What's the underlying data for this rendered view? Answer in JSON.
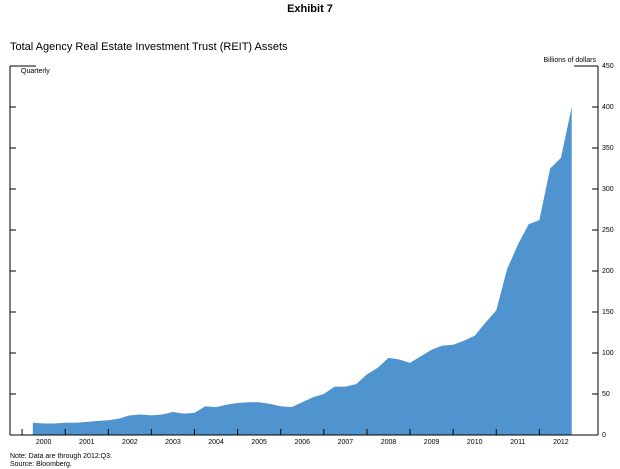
{
  "chart_data": {
    "type": "area",
    "header": "Exhibit 7",
    "title": "Total Agency Real Estate Investment Trust (REIT) Assets",
    "x_annotation": "Quarterly",
    "y_axis_label": "Billions of dollars",
    "note": "Note: Data are through 2012:Q3.",
    "source": "Source: Bloomberg.",
    "color": "#4f93cf",
    "x": [
      2000.25,
      2000.5,
      2000.75,
      2001,
      2001.25,
      2001.5,
      2001.75,
      2002,
      2002.25,
      2002.5,
      2002.75,
      2003,
      2003.25,
      2003.5,
      2003.75,
      2004,
      2004.25,
      2004.5,
      2004.75,
      2005,
      2005.25,
      2005.5,
      2005.75,
      2006,
      2006.25,
      2006.5,
      2006.75,
      2007,
      2007.25,
      2007.5,
      2007.75,
      2008,
      2008.25,
      2008.5,
      2008.75,
      2009,
      2009.25,
      2009.5,
      2009.75,
      2010,
      2010.25,
      2010.5,
      2010.75,
      2011,
      2011.25,
      2011.5,
      2011.75,
      2012,
      2012.25,
      2012.5,
      2012.75
    ],
    "values": [
      15,
      14,
      14,
      15,
      15,
      16,
      17,
      18,
      20,
      24,
      25,
      24,
      25,
      28,
      26,
      27,
      35,
      34,
      37,
      39,
      40,
      40,
      38,
      35,
      34,
      40,
      46,
      50,
      59,
      59,
      62,
      74,
      82,
      94,
      92,
      88,
      96,
      104,
      109,
      110,
      115,
      121,
      137,
      152,
      202,
      232,
      257,
      262,
      325,
      338,
      400
    ],
    "xlim": [
      1999.72,
      2013.36
    ],
    "xticks": [
      {
        "value": 2000.5,
        "label": "2000"
      },
      {
        "value": 2001.5,
        "label": "2001"
      },
      {
        "value": 2002.5,
        "label": "2002"
      },
      {
        "value": 2003.5,
        "label": "2003"
      },
      {
        "value": 2004.5,
        "label": "2004"
      },
      {
        "value": 2005.5,
        "label": "2005"
      },
      {
        "value": 2006.5,
        "label": "2006"
      },
      {
        "value": 2007.5,
        "label": "2007"
      },
      {
        "value": 2008.5,
        "label": "2008"
      },
      {
        "value": 2009.5,
        "label": "2009"
      },
      {
        "value": 2010.5,
        "label": "2010"
      },
      {
        "value": 2011.5,
        "label": "2011"
      },
      {
        "value": 2012.5,
        "label": "2012"
      }
    ],
    "ylim": [
      0,
      450
    ],
    "yticks": [
      0,
      50,
      100,
      150,
      200,
      250,
      300,
      350,
      400,
      450
    ]
  }
}
